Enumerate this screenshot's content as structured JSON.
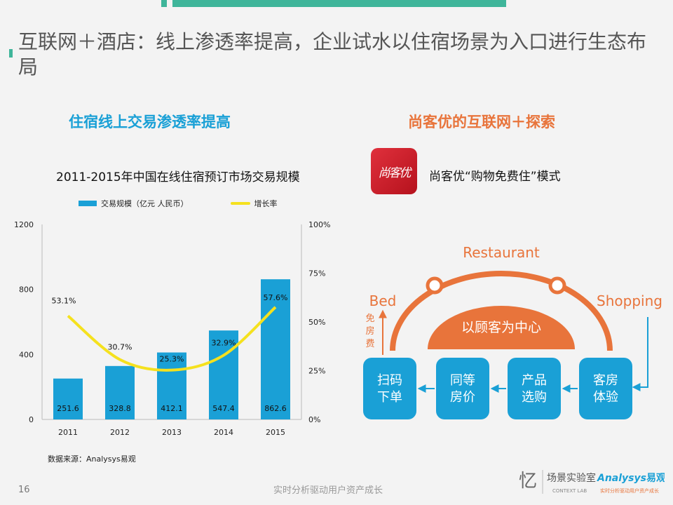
{
  "header": {
    "title": "互联网＋酒店：线上渗透率提高，企业试水以住宿场景为入口进行生态布局"
  },
  "left_section": {
    "title": "住宿线上交易渗透率提高",
    "chart_title": "2011-2015年中国在线住宿预订市场交易规模",
    "legend_bar": "交易规模（亿元 人民币）",
    "legend_line": "增长率",
    "source": "数据来源：Analysys易观"
  },
  "right_section": {
    "title": "尚客优的互联网＋探索",
    "logo_text": "尚客优",
    "model_label": "尚客优“购物免费住”模式",
    "diagram": {
      "top_label": "Restaurant",
      "left_label": "Bed",
      "right_label": "Shopping",
      "center_label": "以顾客为中心",
      "side_label": [
        "免",
        "房",
        "费"
      ],
      "steps": [
        [
          "扫码",
          "下单"
        ],
        [
          "同等",
          "房价"
        ],
        [
          "产品",
          "选购"
        ],
        [
          "客房",
          "体验"
        ]
      ]
    }
  },
  "footer": {
    "page_number": "16",
    "tagline": "实时分析驱动用户资产成长",
    "brand_cn": "场景实验室",
    "brand_en": "CONTEXT LAB",
    "brand_analysys": "Analysys",
    "brand_yiguan": "易观",
    "brand_slogan": "实时分析驱动用户资产成长"
  },
  "chart_data": {
    "type": "bar",
    "categories": [
      "2011",
      "2012",
      "2013",
      "2014",
      "2015"
    ],
    "series": [
      {
        "name": "交易规模（亿元 人民币）",
        "kind": "bar",
        "axis": "left",
        "values": [
          251.6,
          328.8,
          412.1,
          547.4,
          862.6
        ],
        "labels": [
          "251.6",
          "328.8",
          "412.1",
          "547.4",
          "862.6"
        ]
      },
      {
        "name": "增长率",
        "kind": "line",
        "axis": "right",
        "values": [
          53.1,
          30.7,
          25.3,
          32.9,
          57.6
        ],
        "labels": [
          "53.1%",
          "30.7%",
          "25.3%",
          "32.9%",
          "57.6%"
        ]
      }
    ],
    "ylim": [
      0,
      1200
    ],
    "y_ticks": [
      "0",
      "400",
      "800",
      "1200"
    ],
    "y_tick_values": [
      0,
      400,
      800,
      1200
    ],
    "y2lim": [
      0,
      100
    ],
    "y2_ticks": [
      "0%",
      "25%",
      "50%",
      "75%",
      "100%"
    ],
    "y2_tick_values": [
      0,
      25,
      50,
      75,
      100
    ],
    "colors": {
      "bar": "#1aa0d6",
      "line": "#f5e11e"
    }
  }
}
